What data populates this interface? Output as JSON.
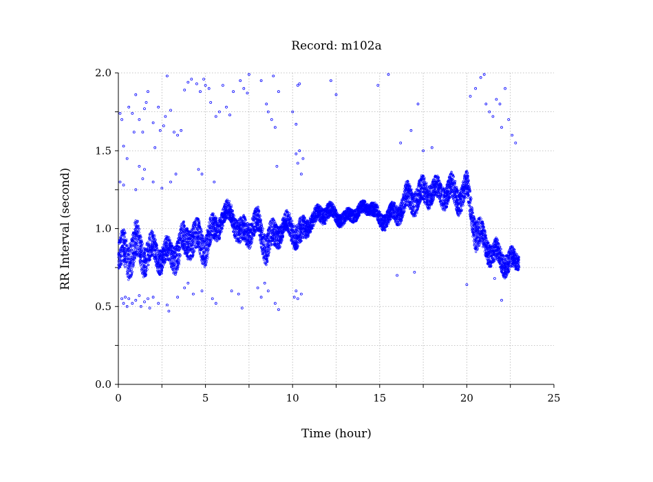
{
  "chart_data": {
    "type": "scatter",
    "title": "Record:  m102a",
    "xlabel": "Time (hour)",
    "ylabel": "RR Interval (second)",
    "xlim": [
      0,
      25
    ],
    "ylim": [
      0,
      2.0
    ],
    "x_ticks": [
      "0",
      "5",
      "10",
      "15",
      "20",
      "25"
    ],
    "y_ticks": [
      "0.0",
      "0.5",
      "1.0",
      "1.5",
      "2.0"
    ],
    "grid": true,
    "marker": "open-circle",
    "series_color": "#0000ff",
    "series": [
      {
        "x": [
          0.0,
          0.5,
          1.0,
          1.5,
          2.0,
          2.5,
          3.0,
          3.5,
          4.0,
          4.5,
          5.0,
          5.5,
          6.0,
          6.5,
          7.0,
          7.5,
          8.0,
          8.5,
          9.0,
          9.5,
          10.0,
          10.5,
          11.0,
          11.5,
          12.0,
          12.5,
          13.0,
          13.5,
          14.0,
          14.5,
          15.0,
          15.5,
          16.0,
          16.5,
          17.0,
          17.5,
          18.0,
          18.5,
          19.0,
          19.5,
          20.0,
          20.5,
          21.0,
          21.5,
          22.0,
          22.5,
          23.0
        ],
        "y": [
          0.8,
          0.85,
          0.88,
          0.84,
          0.86,
          0.82,
          0.84,
          0.85,
          0.95,
          0.92,
          0.9,
          0.98,
          1.08,
          1.1,
          0.95,
          1.0,
          1.02,
          0.9,
          0.95,
          1.02,
          1.0,
          0.95,
          1.05,
          1.08,
          1.12,
          1.08,
          1.06,
          1.1,
          1.12,
          1.15,
          1.05,
          1.08,
          1.1,
          1.18,
          1.2,
          1.22,
          1.25,
          1.22,
          1.25,
          1.2,
          1.25,
          1.0,
          0.9,
          0.85,
          0.8,
          0.78,
          0.8
        ],
        "spread": [
          0.1,
          0.12,
          0.12,
          0.1,
          0.08,
          0.08,
          0.08,
          0.1,
          0.1,
          0.1,
          0.1,
          0.08,
          0.06,
          0.06,
          0.08,
          0.08,
          0.08,
          0.1,
          0.08,
          0.06,
          0.08,
          0.08,
          0.05,
          0.05,
          0.05,
          0.04,
          0.04,
          0.04,
          0.04,
          0.04,
          0.05,
          0.05,
          0.06,
          0.08,
          0.08,
          0.08,
          0.07,
          0.07,
          0.08,
          0.08,
          0.08,
          0.1,
          0.08,
          0.07,
          0.07,
          0.07,
          0.05
        ]
      }
    ],
    "outliers": [
      [
        0.1,
        1.74
      ],
      [
        0.2,
        1.7
      ],
      [
        0.3,
        1.53
      ],
      [
        0.5,
        1.45
      ],
      [
        0.6,
        1.78
      ],
      [
        0.8,
        1.74
      ],
      [
        0.9,
        1.62
      ],
      [
        1.0,
        1.86
      ],
      [
        1.2,
        1.7
      ],
      [
        1.4,
        1.62
      ],
      [
        1.5,
        1.77
      ],
      [
        1.6,
        1.81
      ],
      [
        1.7,
        1.88
      ],
      [
        2.0,
        1.68
      ],
      [
        2.1,
        1.52
      ],
      [
        2.3,
        1.78
      ],
      [
        2.4,
        1.63
      ],
      [
        2.6,
        1.66
      ],
      [
        2.7,
        1.72
      ],
      [
        2.8,
        1.98
      ],
      [
        3.0,
        1.76
      ],
      [
        3.2,
        1.62
      ],
      [
        3.4,
        1.6
      ],
      [
        3.6,
        1.63
      ],
      [
        3.8,
        1.89
      ],
      [
        4.0,
        1.94
      ],
      [
        4.2,
        1.96
      ],
      [
        4.5,
        1.93
      ],
      [
        4.7,
        1.88
      ],
      [
        4.9,
        1.96
      ],
      [
        5.0,
        1.92
      ],
      [
        5.2,
        1.9
      ],
      [
        5.3,
        1.81
      ],
      [
        5.6,
        1.72
      ],
      [
        5.8,
        1.75
      ],
      [
        6.0,
        1.92
      ],
      [
        6.2,
        1.78
      ],
      [
        6.4,
        1.73
      ],
      [
        6.6,
        1.88
      ],
      [
        7.0,
        1.95
      ],
      [
        7.2,
        1.9
      ],
      [
        7.4,
        1.87
      ],
      [
        7.5,
        1.99
      ],
      [
        8.2,
        1.95
      ],
      [
        8.5,
        1.8
      ],
      [
        8.6,
        1.75
      ],
      [
        8.8,
        1.7
      ],
      [
        8.9,
        1.98
      ],
      [
        9.0,
        1.65
      ],
      [
        9.2,
        1.88
      ],
      [
        10.0,
        1.75
      ],
      [
        10.2,
        1.67
      ],
      [
        10.3,
        1.92
      ],
      [
        10.4,
        1.93
      ],
      [
        10.6,
        1.45
      ],
      [
        12.2,
        1.95
      ],
      [
        12.5,
        1.86
      ],
      [
        14.9,
        1.92
      ],
      [
        15.5,
        1.99
      ],
      [
        16.8,
        1.63
      ],
      [
        17.2,
        1.8
      ],
      [
        20.2,
        1.85
      ],
      [
        20.5,
        1.9
      ],
      [
        20.8,
        1.97
      ],
      [
        21.0,
        1.99
      ],
      [
        21.1,
        1.8
      ],
      [
        21.3,
        1.75
      ],
      [
        21.5,
        1.72
      ],
      [
        21.7,
        1.83
      ],
      [
        21.9,
        1.8
      ],
      [
        22.0,
        1.65
      ],
      [
        22.2,
        1.9
      ],
      [
        22.4,
        1.7
      ],
      [
        22.6,
        1.6
      ],
      [
        22.8,
        1.55
      ],
      [
        0.2,
        0.55
      ],
      [
        0.3,
        0.52
      ],
      [
        0.4,
        0.56
      ],
      [
        0.5,
        0.5
      ],
      [
        0.6,
        0.55
      ],
      [
        0.8,
        0.52
      ],
      [
        1.0,
        0.54
      ],
      [
        1.2,
        0.57
      ],
      [
        1.3,
        0.5
      ],
      [
        1.5,
        0.53
      ],
      [
        1.7,
        0.55
      ],
      [
        1.8,
        0.49
      ],
      [
        2.0,
        0.56
      ],
      [
        2.3,
        0.52
      ],
      [
        2.8,
        0.51
      ],
      [
        2.9,
        0.47
      ],
      [
        3.4,
        0.56
      ],
      [
        3.8,
        0.62
      ],
      [
        4.0,
        0.65
      ],
      [
        4.3,
        0.58
      ],
      [
        4.8,
        0.6
      ],
      [
        5.4,
        0.55
      ],
      [
        5.6,
        0.52
      ],
      [
        6.5,
        0.6
      ],
      [
        6.9,
        0.58
      ],
      [
        7.1,
        0.49
      ],
      [
        8.0,
        0.62
      ],
      [
        8.2,
        0.56
      ],
      [
        8.4,
        0.65
      ],
      [
        8.6,
        0.6
      ],
      [
        9.0,
        0.52
      ],
      [
        9.2,
        0.48
      ],
      [
        10.1,
        0.56
      ],
      [
        10.2,
        0.6
      ],
      [
        10.3,
        0.55
      ],
      [
        10.5,
        0.58
      ],
      [
        16.0,
        0.7
      ],
      [
        17.0,
        0.72
      ],
      [
        20.0,
        0.64
      ],
      [
        21.6,
        0.68
      ],
      [
        22.0,
        0.54
      ],
      [
        0.1,
        1.3
      ],
      [
        0.3,
        1.28
      ],
      [
        1.0,
        1.25
      ],
      [
        1.2,
        1.4
      ],
      [
        1.4,
        1.32
      ],
      [
        1.5,
        1.38
      ],
      [
        2.0,
        1.3
      ],
      [
        2.5,
        1.26
      ],
      [
        3.0,
        1.3
      ],
      [
        3.3,
        1.35
      ],
      [
        4.6,
        1.38
      ],
      [
        4.8,
        1.35
      ],
      [
        5.5,
        1.3
      ],
      [
        9.1,
        1.4
      ],
      [
        10.2,
        1.48
      ],
      [
        10.3,
        1.42
      ],
      [
        10.4,
        1.5
      ],
      [
        10.5,
        1.35
      ],
      [
        16.2,
        1.55
      ],
      [
        17.5,
        1.5
      ],
      [
        18.0,
        1.52
      ]
    ]
  }
}
